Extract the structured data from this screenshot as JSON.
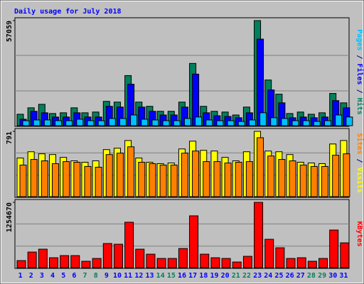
{
  "title": "Daily usage for July 2018",
  "legend_separator": " / ",
  "categories": [
    "1",
    "2",
    "3",
    "4",
    "5",
    "6",
    "7",
    "8",
    "9",
    "10",
    "11",
    "12",
    "13",
    "14",
    "15",
    "16",
    "17",
    "18",
    "19",
    "20",
    "21",
    "22",
    "23",
    "24",
    "25",
    "26",
    "27",
    "28",
    "29",
    "30",
    "31"
  ],
  "category_colors": [
    "#0000ff",
    "#0000ff",
    "#0000ff",
    "#0000ff",
    "#0000ff",
    "#0000ff",
    "#00805c",
    "#00805c",
    "#0000ff",
    "#0000ff",
    "#0000ff",
    "#0000ff",
    "#0000ff",
    "#00805c",
    "#00805c",
    "#0000ff",
    "#0000ff",
    "#0000ff",
    "#0000ff",
    "#0000ff",
    "#00805c",
    "#00805c",
    "#0000ff",
    "#0000ff",
    "#0000ff",
    "#0000ff",
    "#0000ff",
    "#00805c",
    "#00805c",
    "#0000ff",
    "#0000ff"
  ],
  "chart_data": [
    {
      "type": "bar",
      "ylim": [
        0,
        57059
      ],
      "yticks": [
        57059
      ],
      "series": [
        {
          "name": "Hits",
          "color": "#00805c",
          "values": [
            6200,
            9700,
            11600,
            6600,
            7000,
            9700,
            7000,
            7400,
            13200,
            12800,
            27200,
            12800,
            10500,
            7800,
            7800,
            12800,
            33800,
            10500,
            7800,
            7400,
            5800,
            10100,
            57059,
            24800,
            17100,
            6600,
            7400,
            6200,
            7000,
            17500,
            12400
          ]
        },
        {
          "name": "Files",
          "color": "#0000ff",
          "values": [
            3500,
            7800,
            7000,
            4700,
            4700,
            7000,
            4700,
            4700,
            10500,
            10100,
            22500,
            10100,
            7800,
            5800,
            5800,
            10100,
            28000,
            7000,
            5400,
            5000,
            4300,
            7000,
            47000,
            19400,
            12400,
            4300,
            4700,
            4300,
            4700,
            13600,
            9700
          ]
        },
        {
          "name": "Pages",
          "color": "#00c0ff",
          "values": [
            2700,
            3100,
            3100,
            2700,
            2700,
            3500,
            2700,
            2700,
            3900,
            3900,
            5800,
            3500,
            3100,
            2700,
            2700,
            3900,
            4700,
            3100,
            2700,
            2700,
            2300,
            3100,
            7000,
            4300,
            3900,
            2700,
            2700,
            2300,
            2700,
            5800,
            4700
          ]
        }
      ]
    },
    {
      "type": "bar",
      "ylim": [
        0,
        791
      ],
      "yticks": [
        791
      ],
      "series": [
        {
          "name": "Visits",
          "color": "#ffff00",
          "values": [
            468,
            544,
            519,
            510,
            476,
            434,
            417,
            434,
            570,
            587,
            680,
            468,
            417,
            400,
            408,
            578,
            672,
            561,
            553,
            476,
            434,
            544,
            791,
            553,
            544,
            510,
            417,
            408,
            400,
            638,
            680
          ]
        },
        {
          "name": "Sites",
          "color": "#ff8000",
          "values": [
            383,
            451,
            434,
            400,
            425,
            417,
            366,
            357,
            510,
            527,
            604,
            417,
            400,
            383,
            383,
            527,
            553,
            425,
            425,
            408,
            417,
            425,
            714,
            493,
            451,
            434,
            383,
            366,
            366,
            502,
            519
          ]
        }
      ]
    },
    {
      "type": "bar",
      "ylim": [
        0,
        1254670
      ],
      "yticks": [
        1254670
      ],
      "series": [
        {
          "name": "KBytes",
          "color": "#ff0000",
          "values": [
            136000,
            300000,
            355000,
            191000,
            232000,
            232000,
            123000,
            177000,
            464000,
            450000,
            873000,
            355000,
            259000,
            177000,
            177000,
            368000,
            996000,
            259000,
            191000,
            177000,
            109000,
            218000,
            1254670,
            545000,
            382000,
            177000,
            191000,
            123000,
            177000,
            723000,
            477000
          ]
        }
      ]
    }
  ]
}
